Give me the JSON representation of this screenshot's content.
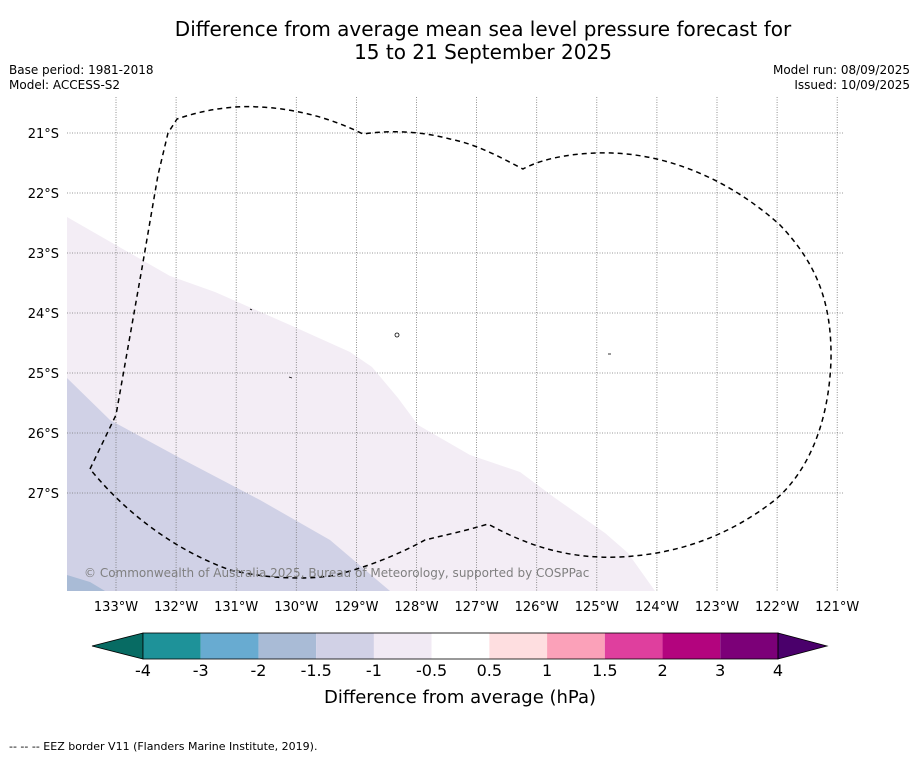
{
  "title_line1": "Difference from average mean sea level pressure forecast for",
  "title_line2": "15 to 21 September 2025",
  "base_period": "Base period: 1981-2018",
  "model": "Model: ACCESS-S2",
  "model_run": "Model run: 08/09/2025",
  "issued": "Issued: 10/09/2025",
  "copyright": "© Commonwealth of Australia 2025, Bureau of Meteorology, supported by COSPPac",
  "footer": "--  --  -- EEZ border V11 (Flanders Marine Institute, 2019).",
  "lat_labels": [
    "21°S",
    "22°S",
    "23°S",
    "24°S",
    "25°S",
    "26°S",
    "27°S"
  ],
  "lon_labels": [
    "133°W",
    "132°W",
    "131°W",
    "130°W",
    "129°W",
    "128°W",
    "127°W",
    "126°W",
    "125°W",
    "124°W",
    "123°W",
    "122°W",
    "121°W"
  ],
  "colorbar": {
    "label": "Difference from average (hPa)",
    "ticks": [
      "-4",
      "-3",
      "-2",
      "-1.5",
      "-1",
      "-0.5",
      "0.5",
      "1",
      "1.5",
      "2",
      "3",
      "4"
    ],
    "colors": [
      "#076b63",
      "#1e9299",
      "#68abd1",
      "#a9bbd6",
      "#d1d1e6",
      "#f1eaf4",
      "#ffffff",
      "#fedee0",
      "#fba1b9",
      "#df3f9e",
      "#b3047e",
      "#7c0078",
      "#4a006b"
    ]
  },
  "map_colors": {
    "band_light": "#f3edf5",
    "band_mid": "#d0d1e6",
    "band_dark": "#a9bbd6"
  }
}
